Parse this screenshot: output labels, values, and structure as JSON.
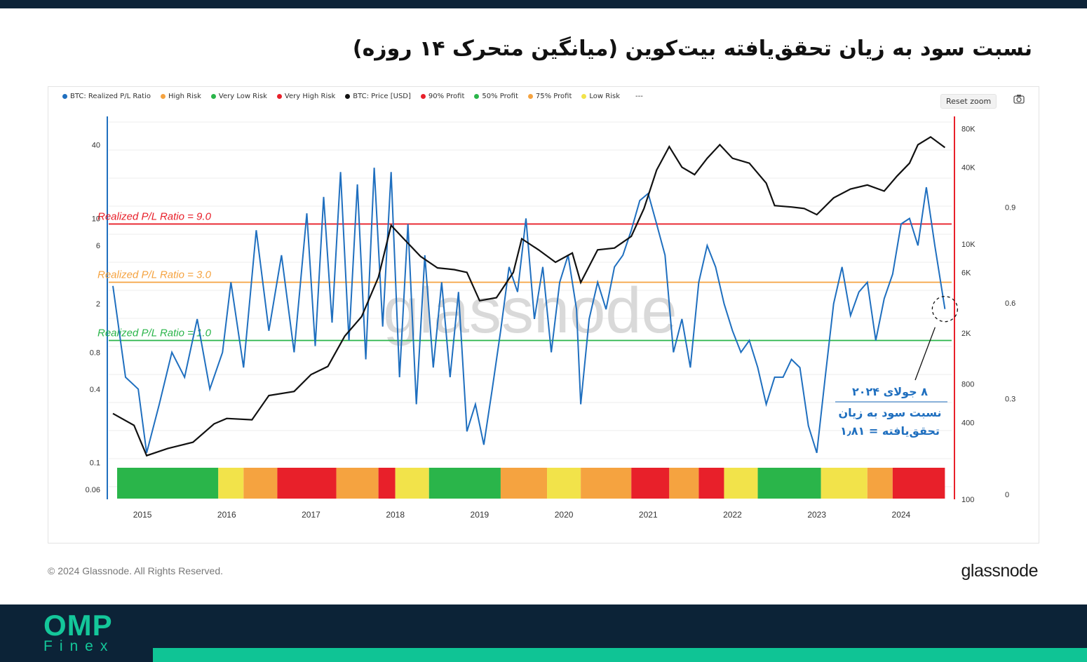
{
  "title": "نسبت سود به زیان تحقق‌یافته بیت‌کوین (میانگین متحرک ۱۴ روزه)",
  "legend": [
    {
      "label": "BTC: Realized P/L Ratio",
      "color": "#1f6fbf"
    },
    {
      "label": "High Risk",
      "color": "#f5a340"
    },
    {
      "label": "Very Low Risk",
      "color": "#2ab54a"
    },
    {
      "label": "Very High Risk",
      "color": "#e8202a"
    },
    {
      "label": "BTC: Price [USD]",
      "color": "#111111"
    },
    {
      "label": "90% Profit",
      "color": "#e8202a"
    },
    {
      "label": "50% Profit",
      "color": "#2ab54a"
    },
    {
      "label": "75% Profit",
      "color": "#f5a340"
    },
    {
      "label": "Low Risk",
      "color": "#f2e34a"
    }
  ],
  "legend_more": "---",
  "reset_zoom": "Reset zoom",
  "watermark": "glassnode",
  "annotation": {
    "line1": "۸ جولای ۲۰۲۴",
    "line2": "نسبت سود به زیان",
    "line3": "تحقق‌یافته = ۱٫۸۱"
  },
  "copyright": "© 2024 Glassnode. All Rights Reserved.",
  "brand": "glassnode",
  "footer_logo": {
    "main": "OMP",
    "sub": "Finex"
  },
  "chart_data": {
    "type": "line",
    "x_ticks": [
      "2015",
      "2016",
      "2017",
      "2018",
      "2019",
      "2020",
      "2021",
      "2022",
      "2023",
      "2024"
    ],
    "left_axis": {
      "scale": "log",
      "ticks": [
        "40",
        "10",
        "6",
        "2",
        "0.8",
        "0.4",
        "0.1",
        "0.06"
      ]
    },
    "right_price_axis": {
      "scale": "log",
      "label": "BTC: Price [USD]",
      "ticks": [
        "80K",
        "40K",
        "10K",
        "6K",
        "2K",
        "800",
        "400",
        "100"
      ]
    },
    "far_right_axis": {
      "ticks": [
        "0.9",
        "0.6",
        "0.3",
        "0"
      ]
    },
    "thresholds": [
      {
        "label": "Realized P/L Ratio = 9.0",
        "value": 9.0,
        "color": "#e8202a"
      },
      {
        "label": "Realized P/L Ratio = 3.0",
        "value": 3.0,
        "color": "#f5a340"
      },
      {
        "label": "Realized P/L Ratio = 1.0",
        "value": 1.0,
        "color": "#2ab54a"
      }
    ],
    "series": [
      {
        "name": "BTC: Realized P/L Ratio",
        "color": "#1f6fbf",
        "x": [
          2014.65,
          2014.8,
          2014.95,
          2015.05,
          2015.2,
          2015.35,
          2015.5,
          2015.65,
          2015.8,
          2015.95,
          2016.05,
          2016.2,
          2016.35,
          2016.5,
          2016.65,
          2016.8,
          2016.95,
          2017.05,
          2017.15,
          2017.25,
          2017.35,
          2017.45,
          2017.55,
          2017.65,
          2017.75,
          2017.85,
          2017.95,
          2018.05,
          2018.15,
          2018.25,
          2018.35,
          2018.45,
          2018.55,
          2018.65,
          2018.75,
          2018.85,
          2018.95,
          2019.05,
          2019.15,
          2019.25,
          2019.35,
          2019.45,
          2019.55,
          2019.65,
          2019.75,
          2019.85,
          2019.95,
          2020.05,
          2020.15,
          2020.2,
          2020.3,
          2020.4,
          2020.5,
          2020.6,
          2020.7,
          2020.8,
          2020.9,
          2021.0,
          2021.1,
          2021.2,
          2021.3,
          2021.4,
          2021.5,
          2021.6,
          2021.7,
          2021.8,
          2021.9,
          2022.0,
          2022.1,
          2022.2,
          2022.3,
          2022.4,
          2022.5,
          2022.6,
          2022.7,
          2022.8,
          2022.9,
          2023.0,
          2023.1,
          2023.2,
          2023.3,
          2023.4,
          2023.5,
          2023.6,
          2023.7,
          2023.8,
          2023.9,
          2024.0,
          2024.1,
          2024.2,
          2024.3,
          2024.4,
          2024.52
        ],
        "values": [
          2.8,
          0.5,
          0.4,
          0.12,
          0.3,
          0.8,
          0.5,
          1.5,
          0.4,
          0.8,
          3,
          0.6,
          8,
          1.2,
          5,
          0.8,
          11,
          0.9,
          15,
          1.4,
          24,
          1.0,
          19,
          0.7,
          26,
          1.3,
          24,
          0.5,
          9,
          0.3,
          5,
          0.6,
          3,
          0.5,
          2.5,
          0.18,
          0.3,
          0.14,
          0.4,
          1.2,
          4,
          2.5,
          10,
          1.5,
          4,
          0.8,
          3,
          5,
          1.8,
          0.3,
          1.5,
          3,
          1.8,
          4,
          5,
          8,
          14,
          16,
          9,
          5,
          0.8,
          1.5,
          0.6,
          3,
          6,
          4,
          2,
          1.2,
          0.8,
          1,
          0.6,
          0.3,
          0.5,
          0.5,
          0.7,
          0.6,
          0.2,
          0.12,
          0.5,
          2,
          4,
          1.6,
          2.5,
          3,
          1.0,
          2.2,
          3.5,
          9,
          10,
          6,
          18,
          6,
          1.81
        ]
      },
      {
        "name": "BTC: Price [USD]",
        "color": "#111111",
        "x": [
          2014.65,
          2014.9,
          2015.05,
          2015.3,
          2015.6,
          2015.85,
          2016.0,
          2016.3,
          2016.5,
          2016.8,
          2017.0,
          2017.2,
          2017.4,
          2017.6,
          2017.8,
          2017.95,
          2018.1,
          2018.3,
          2018.5,
          2018.7,
          2018.85,
          2019.0,
          2019.2,
          2019.4,
          2019.5,
          2019.7,
          2019.9,
          2020.1,
          2020.2,
          2020.4,
          2020.6,
          2020.8,
          2020.95,
          2021.1,
          2021.25,
          2021.4,
          2021.55,
          2021.7,
          2021.85,
          2022.0,
          2022.2,
          2022.4,
          2022.5,
          2022.7,
          2022.85,
          2023.0,
          2023.2,
          2023.4,
          2023.6,
          2023.8,
          2023.95,
          2024.1,
          2024.2,
          2024.35,
          2024.52
        ],
        "values": [
          470,
          380,
          220,
          250,
          280,
          390,
          430,
          420,
          650,
          700,
          950,
          1100,
          1900,
          2700,
          5500,
          14000,
          11000,
          8000,
          6500,
          6300,
          6000,
          3600,
          3800,
          6000,
          11000,
          9000,
          7200,
          8500,
          5000,
          9000,
          9300,
          11500,
          19000,
          38000,
          58000,
          40000,
          35000,
          47000,
          60000,
          47000,
          43000,
          30000,
          20000,
          19500,
          19000,
          17000,
          23000,
          27000,
          29000,
          26000,
          34000,
          43000,
          60000,
          69000,
          57000
        ]
      }
    ],
    "risk_band": [
      {
        "from": 2014.7,
        "to": 2015.9,
        "color": "#2ab54a"
      },
      {
        "from": 2015.9,
        "to": 2016.2,
        "color": "#f2e34a"
      },
      {
        "from": 2016.2,
        "to": 2016.6,
        "color": "#f5a340"
      },
      {
        "from": 2016.6,
        "to": 2017.3,
        "color": "#e8202a"
      },
      {
        "from": 2017.3,
        "to": 2017.8,
        "color": "#f5a340"
      },
      {
        "from": 2017.8,
        "to": 2018.0,
        "color": "#e8202a"
      },
      {
        "from": 2018.0,
        "to": 2018.4,
        "color": "#f2e34a"
      },
      {
        "from": 2018.4,
        "to": 2019.25,
        "color": "#2ab54a"
      },
      {
        "from": 2019.25,
        "to": 2019.8,
        "color": "#f5a340"
      },
      {
        "from": 2019.8,
        "to": 2020.2,
        "color": "#f2e34a"
      },
      {
        "from": 2020.2,
        "to": 2020.8,
        "color": "#f5a340"
      },
      {
        "from": 2020.8,
        "to": 2021.25,
        "color": "#e8202a"
      },
      {
        "from": 2021.25,
        "to": 2021.6,
        "color": "#f5a340"
      },
      {
        "from": 2021.6,
        "to": 2021.9,
        "color": "#e8202a"
      },
      {
        "from": 2021.9,
        "to": 2022.3,
        "color": "#f2e34a"
      },
      {
        "from": 2022.3,
        "to": 2023.05,
        "color": "#2ab54a"
      },
      {
        "from": 2023.05,
        "to": 2023.6,
        "color": "#f2e34a"
      },
      {
        "from": 2023.6,
        "to": 2023.9,
        "color": "#f5a340"
      },
      {
        "from": 2023.9,
        "to": 2024.52,
        "color": "#e8202a"
      }
    ]
  }
}
